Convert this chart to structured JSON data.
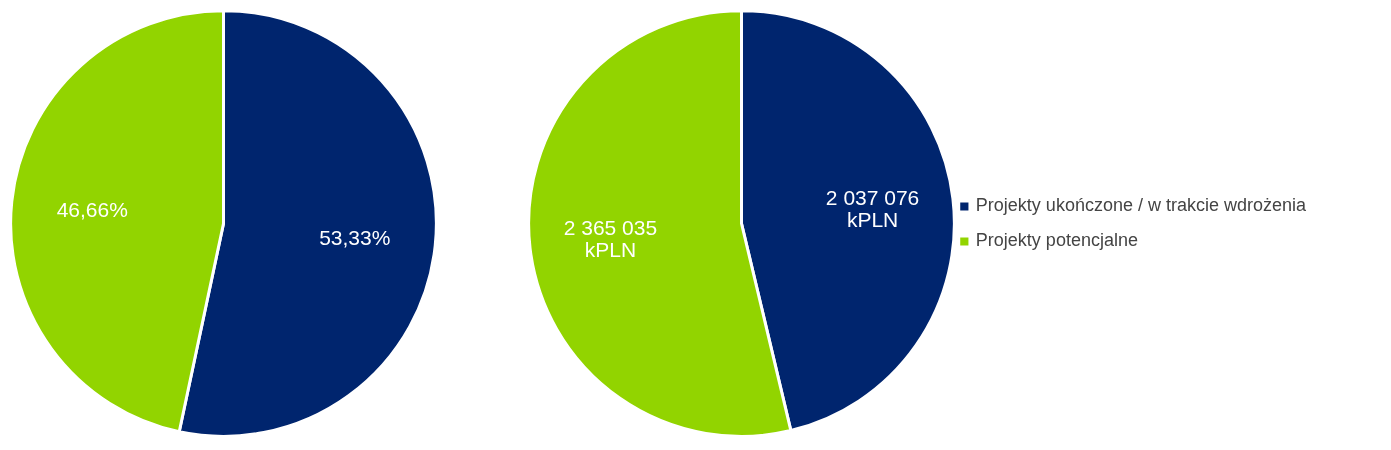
{
  "chart_data": [
    {
      "type": "pie",
      "categories": [
        null,
        null
      ],
      "values": [
        53.33,
        46.66
      ],
      "colors": [
        "#00256e",
        "#92d400"
      ],
      "value_labels": [
        "53,33%",
        "46,66%"
      ]
    },
    {
      "type": "pie",
      "categories": [
        "Projekty ukończone / w trakcie wdrożenia",
        "Projekty potencjalne"
      ],
      "values": [
        2037076,
        2365035
      ],
      "colors": [
        "#00256e",
        "#92d400"
      ],
      "value_labels": [
        "2 037 076\nkPLN",
        "2 365 035\nkPLN"
      ],
      "legend": "right"
    }
  ]
}
